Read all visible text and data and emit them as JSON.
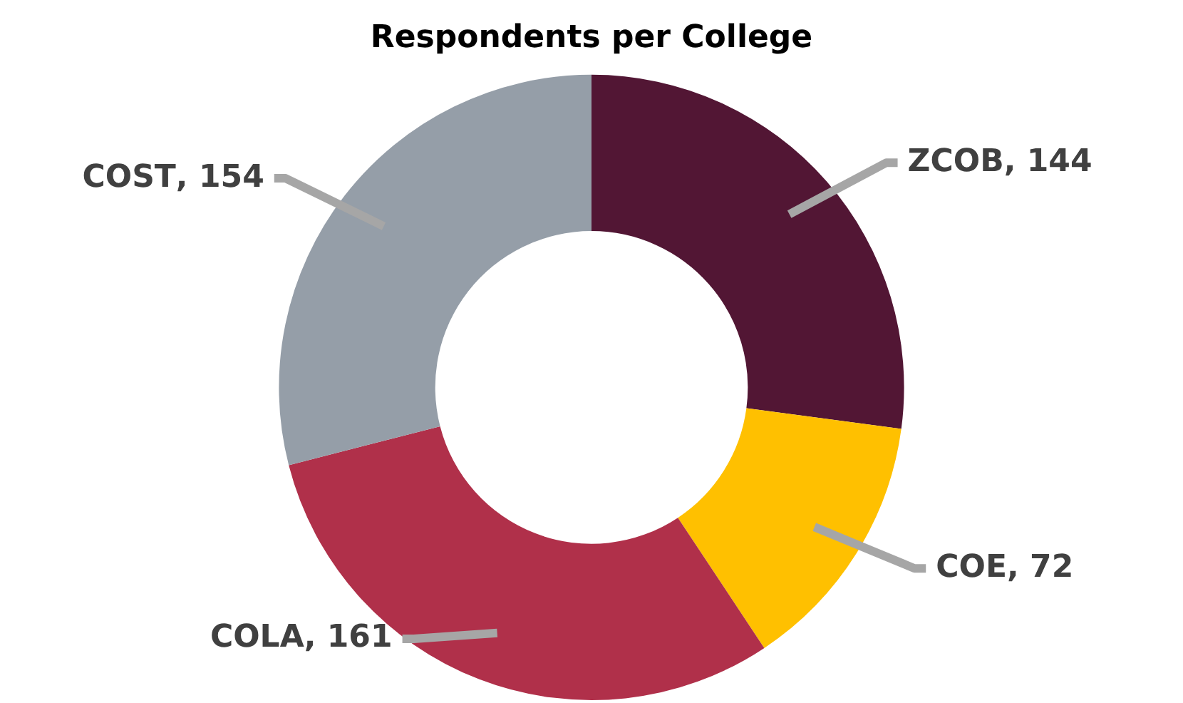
{
  "chart_data": {
    "type": "donut",
    "title": "Respondents per College",
    "categories": [
      "ZCOB",
      "COE",
      "COLA",
      "COST"
    ],
    "values": [
      144,
      72,
      161,
      154
    ],
    "value_labels": [
      ", 144",
      ", 72",
      ", 161",
      ", 154"
    ],
    "colors": [
      "#521634",
      "#ffc000",
      "#b0304a",
      "#959ea8"
    ],
    "legend": false
  }
}
